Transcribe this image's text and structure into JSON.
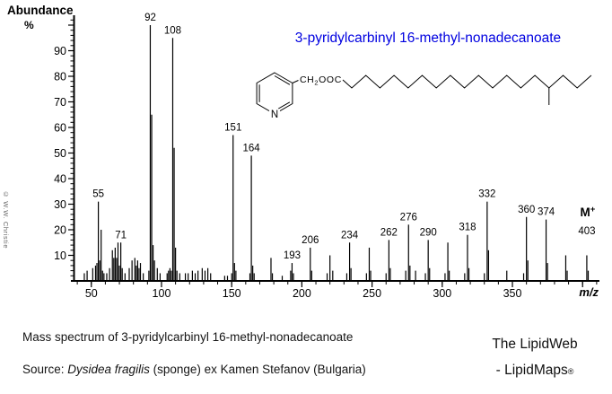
{
  "colors": {
    "title_blue": "#0000E0",
    "axis_black": "#000000",
    "copyright_gray": "#666666"
  },
  "chart_data": {
    "type": "bar",
    "title": "3-pyridylcarbinyl 16-methyl-nonadecanoate",
    "ylabel_title": "Abundance",
    "ylabel_unit": "%",
    "xlabel": "m/z",
    "xlim": [
      38,
      412
    ],
    "ylim": [
      0,
      103
    ],
    "xticks": [
      50,
      100,
      150,
      200,
      250,
      300,
      350
    ],
    "xticks_unlabeled": [
      400
    ],
    "x_minor_step": 10,
    "yticks": [
      10,
      20,
      30,
      40,
      50,
      60,
      70,
      80,
      90
    ],
    "y_minor_step": 2,
    "legend": "none",
    "grid": false,
    "labeled_peaks": [
      55,
      71,
      92,
      108,
      151,
      164,
      193,
      206,
      234,
      262,
      276,
      290,
      318,
      332,
      360,
      374
    ],
    "molecular_ion": {
      "symbol": "M",
      "charge": "+",
      "mz": 403
    },
    "peaks": [
      [
        45,
        3
      ],
      [
        47,
        4
      ],
      [
        51,
        5
      ],
      [
        53,
        6
      ],
      [
        54,
        7
      ],
      [
        55,
        31
      ],
      [
        56,
        8
      ],
      [
        57,
        20
      ],
      [
        58,
        4
      ],
      [
        59,
        3
      ],
      [
        61,
        3
      ],
      [
        63,
        5
      ],
      [
        65,
        12
      ],
      [
        66,
        9
      ],
      [
        67,
        13
      ],
      [
        68,
        9
      ],
      [
        69,
        15
      ],
      [
        70,
        6
      ],
      [
        71,
        15
      ],
      [
        72,
        5
      ],
      [
        74,
        3
      ],
      [
        77,
        5
      ],
      [
        79,
        8
      ],
      [
        81,
        9
      ],
      [
        82,
        6
      ],
      [
        83,
        8
      ],
      [
        84,
        5
      ],
      [
        85,
        7
      ],
      [
        87,
        3
      ],
      [
        91,
        4
      ],
      [
        92,
        100
      ],
      [
        93,
        65
      ],
      [
        94,
        14
      ],
      [
        95,
        8
      ],
      [
        97,
        5
      ],
      [
        99,
        3
      ],
      [
        104,
        3
      ],
      [
        105,
        4
      ],
      [
        106,
        5
      ],
      [
        107,
        4
      ],
      [
        108,
        95
      ],
      [
        109,
        52
      ],
      [
        110,
        13
      ],
      [
        111,
        4
      ],
      [
        113,
        3
      ],
      [
        117,
        3
      ],
      [
        119,
        3
      ],
      [
        122,
        4
      ],
      [
        124,
        3
      ],
      [
        126,
        4
      ],
      [
        129,
        5
      ],
      [
        131,
        4
      ],
      [
        133,
        5
      ],
      [
        135,
        3
      ],
      [
        145,
        2
      ],
      [
        147,
        2
      ],
      [
        150,
        3
      ],
      [
        151,
        57
      ],
      [
        152,
        7
      ],
      [
        153,
        4
      ],
      [
        163,
        3
      ],
      [
        164,
        49
      ],
      [
        165,
        6
      ],
      [
        166,
        3
      ],
      [
        178,
        9
      ],
      [
        179,
        3
      ],
      [
        186,
        2
      ],
      [
        192,
        4
      ],
      [
        193,
        7
      ],
      [
        194,
        3
      ],
      [
        206,
        13
      ],
      [
        207,
        4
      ],
      [
        218,
        3
      ],
      [
        220,
        10
      ],
      [
        222,
        4
      ],
      [
        232,
        3
      ],
      [
        234,
        15
      ],
      [
        235,
        5
      ],
      [
        246,
        3
      ],
      [
        248,
        13
      ],
      [
        249,
        4
      ],
      [
        260,
        3
      ],
      [
        262,
        16
      ],
      [
        263,
        5
      ],
      [
        274,
        4
      ],
      [
        276,
        22
      ],
      [
        277,
        6
      ],
      [
        281,
        4
      ],
      [
        288,
        3
      ],
      [
        290,
        16
      ],
      [
        291,
        5
      ],
      [
        302,
        3
      ],
      [
        304,
        15
      ],
      [
        305,
        4
      ],
      [
        316,
        3
      ],
      [
        318,
        18
      ],
      [
        319,
        5
      ],
      [
        330,
        3
      ],
      [
        332,
        31
      ],
      [
        333,
        12
      ],
      [
        346,
        4
      ],
      [
        358,
        3
      ],
      [
        360,
        25
      ],
      [
        361,
        8
      ],
      [
        374,
        24
      ],
      [
        375,
        7
      ],
      [
        388,
        10
      ],
      [
        389,
        4
      ],
      [
        403,
        10
      ],
      [
        404,
        4
      ]
    ]
  },
  "molecule": {
    "ester_group": "CH",
    "ester_sub": "2",
    "ester_rest": "OOC",
    "hetero_atom": "N"
  },
  "captions": {
    "line1": "Mass spectrum of 3-pyridylcarbinyl 16-methyl-nonadecanoate",
    "source_prefix": "Source: ",
    "source_species": "Dysidea fragilis",
    "source_suffix": " (sponge) ex Kamen Stefanov (Bulgaria)"
  },
  "branding": {
    "line1": "The LipidWeb",
    "line2": "- LipidMaps",
    "reg": "®"
  },
  "copyright_vertical": "© W.W. Christie"
}
